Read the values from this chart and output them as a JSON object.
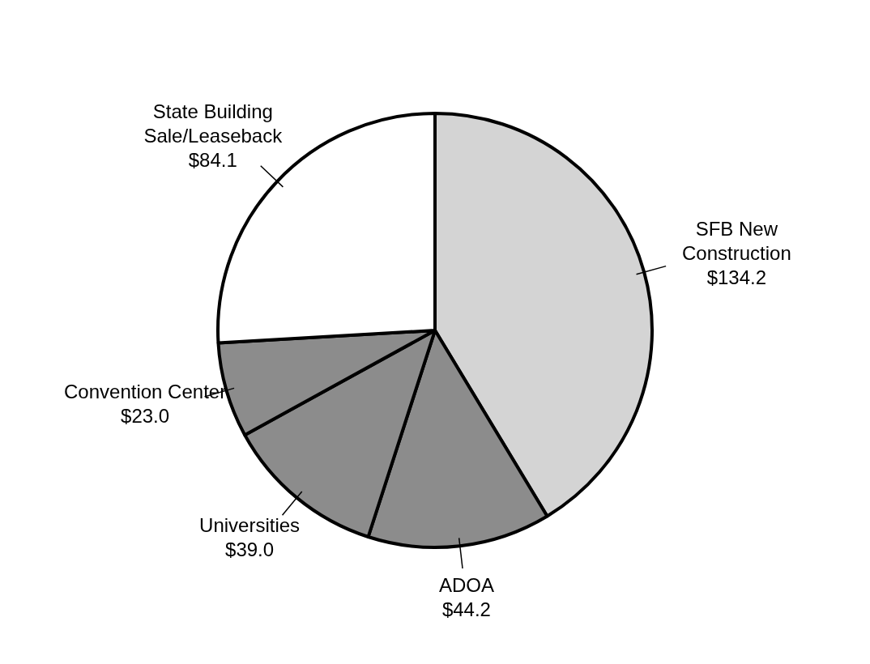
{
  "chart_data": {
    "type": "pie",
    "categories": [
      "SFB New Construction",
      "ADOA",
      "Universities",
      "Convention Center",
      "State Building Sale/Leaseback"
    ],
    "values": [
      134.2,
      44.2,
      39.0,
      23.0,
      84.1
    ],
    "value_labels": [
      "$134.2",
      "$44.2",
      "$39.0",
      "$23.0",
      "$84.1"
    ],
    "colors": [
      "#d4d4d4",
      "#8c8c8c",
      "#8c8c8c",
      "#8c8c8c",
      "#ffffff"
    ],
    "legend": false
  }
}
